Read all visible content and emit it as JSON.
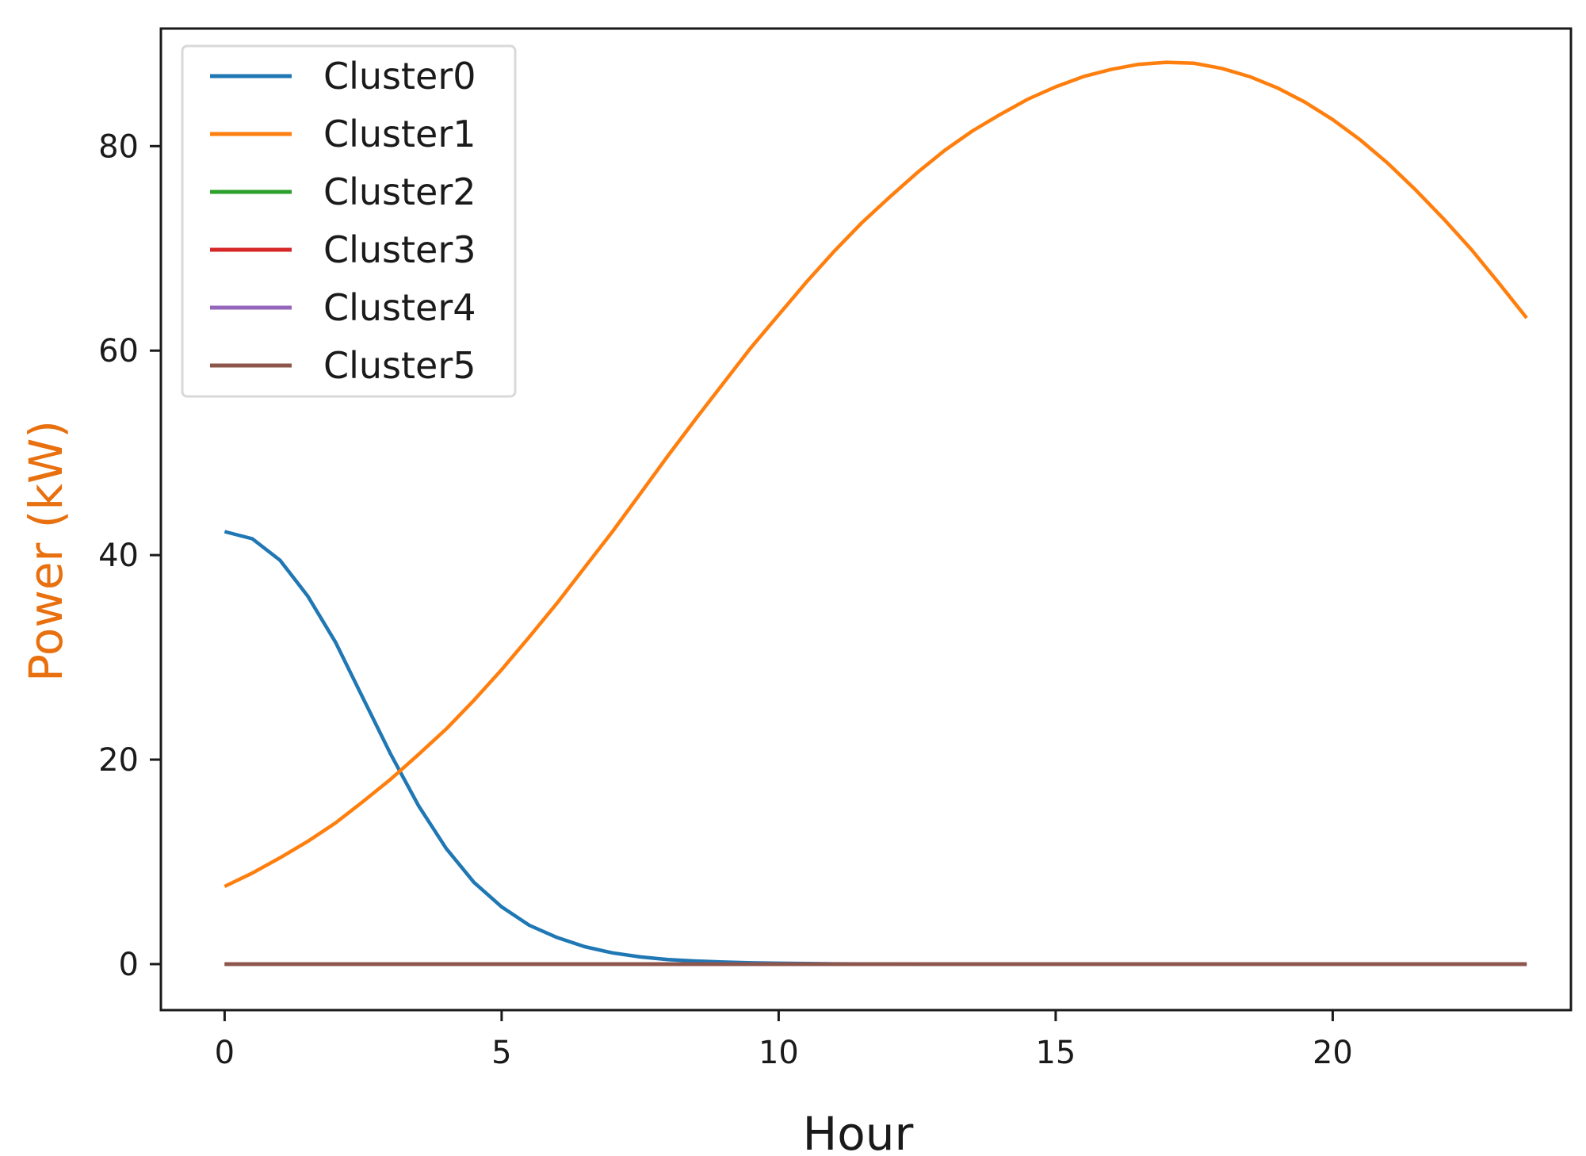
{
  "chart_data": {
    "type": "line",
    "xlabel": "Hour",
    "ylabel": "Power (kW)",
    "ylabel_color": "#e8700f",
    "xlim": [
      -1.15,
      24.3
    ],
    "ylim": [
      -4.5,
      91.5
    ],
    "xticks": [
      0,
      5,
      10,
      15,
      20
    ],
    "yticks": [
      0,
      20,
      40,
      60,
      80
    ],
    "grid": false,
    "legend": "top-left",
    "x": [
      0,
      0.5,
      1,
      1.5,
      2,
      2.5,
      3,
      3.5,
      4,
      4.5,
      5,
      5.5,
      6,
      6.5,
      7,
      7.5,
      8,
      8.5,
      9,
      9.5,
      10,
      10.5,
      11,
      11.5,
      12,
      12.5,
      13,
      13.5,
      14,
      14.5,
      15,
      15.5,
      16,
      16.5,
      17,
      17.5,
      18,
      18.5,
      19,
      19.5,
      20,
      20.5,
      21,
      21.5,
      22,
      22.5,
      23,
      23.5
    ],
    "series": [
      {
        "name": "Cluster0",
        "color": "#1f77b4",
        "values": [
          42.3,
          41.6,
          39.5,
          36,
          31.5,
          26,
          20.5,
          15.5,
          11.3,
          8,
          5.6,
          3.8,
          2.6,
          1.7,
          1.1,
          0.7,
          0.45,
          0.3,
          0.2,
          0.12,
          0.08,
          0.05,
          0.03,
          0.02,
          0.01,
          0,
          0,
          0,
          0,
          0,
          0,
          0,
          0,
          0,
          0,
          0,
          0,
          0,
          0,
          0,
          0,
          0,
          0,
          0,
          0,
          0,
          0,
          0
        ]
      },
      {
        "name": "Cluster1",
        "color": "#ff7f0e",
        "values": [
          7.6,
          8.9,
          10.4,
          12,
          13.8,
          15.9,
          18.1,
          20.5,
          23,
          25.8,
          28.8,
          32,
          35.3,
          38.8,
          42.3,
          46,
          49.7,
          53.3,
          56.8,
          60.3,
          63.5,
          66.7,
          69.7,
          72.5,
          75,
          77.4,
          79.6,
          81.5,
          83.1,
          84.6,
          85.8,
          86.8,
          87.5,
          88,
          88.2,
          88.1,
          87.6,
          86.8,
          85.7,
          84.3,
          82.6,
          80.6,
          78.3,
          75.7,
          72.9,
          69.9,
          66.6,
          63.2
        ]
      },
      {
        "name": "Cluster2",
        "color": "#2ca02c",
        "values": [
          0,
          0,
          0,
          0,
          0,
          0,
          0,
          0,
          0,
          0,
          0,
          0,
          0,
          0,
          0,
          0,
          0,
          0,
          0,
          0,
          0,
          0,
          0,
          0,
          0,
          0,
          0,
          0,
          0,
          0,
          0,
          0,
          0,
          0,
          0,
          0,
          0,
          0,
          0,
          0,
          0,
          0,
          0,
          0,
          0,
          0,
          0,
          0
        ]
      },
      {
        "name": "Cluster3",
        "color": "#d62728",
        "values": [
          0,
          0,
          0,
          0,
          0,
          0,
          0,
          0,
          0,
          0,
          0,
          0,
          0,
          0,
          0,
          0,
          0,
          0,
          0,
          0,
          0,
          0,
          0,
          0,
          0,
          0,
          0,
          0,
          0,
          0,
          0,
          0,
          0,
          0,
          0,
          0,
          0,
          0,
          0,
          0,
          0,
          0,
          0,
          0,
          0,
          0,
          0,
          0
        ]
      },
      {
        "name": "Cluster4",
        "color": "#9467bd",
        "values": [
          0,
          0,
          0,
          0,
          0,
          0,
          0,
          0,
          0,
          0,
          0,
          0,
          0,
          0,
          0,
          0,
          0,
          0,
          0,
          0,
          0,
          0,
          0,
          0,
          0,
          0,
          0,
          0,
          0,
          0,
          0,
          0,
          0,
          0,
          0,
          0,
          0,
          0,
          0,
          0,
          0,
          0,
          0,
          0,
          0,
          0,
          0,
          0
        ]
      },
      {
        "name": "Cluster5",
        "color": "#8c564b",
        "values": [
          0,
          0,
          0,
          0,
          0,
          0,
          0,
          0,
          0,
          0,
          0,
          0,
          0,
          0,
          0,
          0,
          0,
          0,
          0,
          0,
          0,
          0,
          0,
          0,
          0,
          0,
          0,
          0,
          0,
          0,
          0,
          0,
          0,
          0,
          0,
          0,
          0,
          0,
          0,
          0,
          0,
          0,
          0,
          0,
          0,
          0,
          0,
          0
        ]
      }
    ]
  }
}
